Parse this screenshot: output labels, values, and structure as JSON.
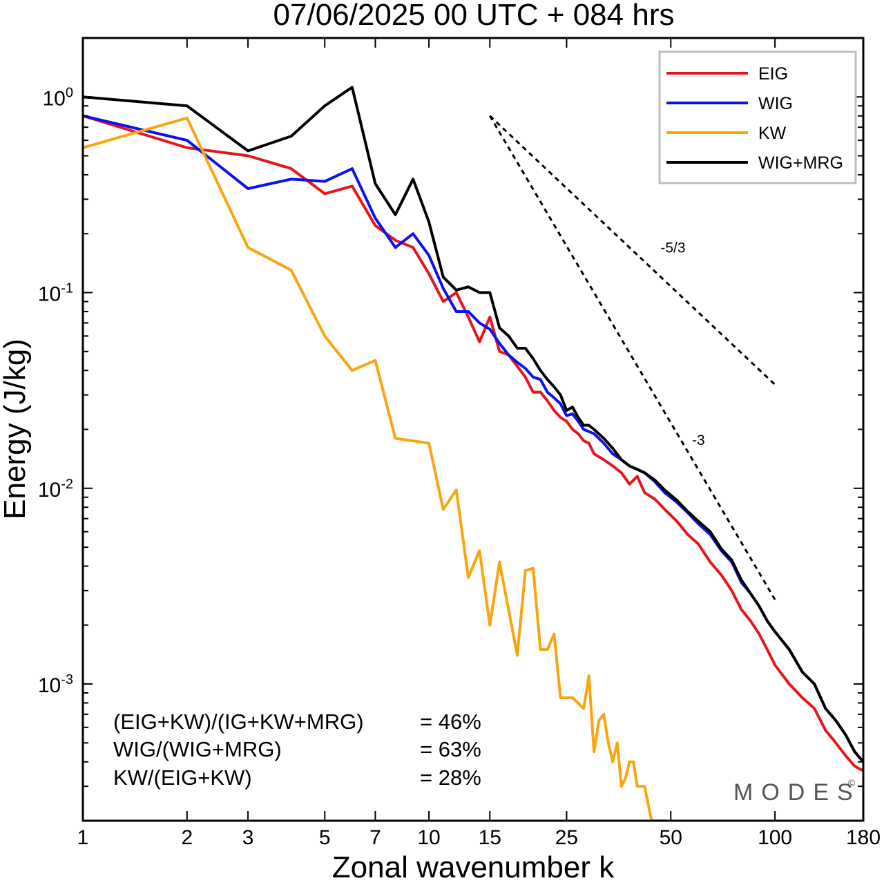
{
  "chart_data": {
    "type": "line",
    "title": "07/06/2025  00 UTC  + 084 hrs",
    "xlabel": "Zonal wavenumber k",
    "ylabel": "Energy (J/kg)",
    "xscale": "log",
    "yscale": "log",
    "xlim": [
      1,
      180
    ],
    "ylim": [
      0.0002,
      2.0
    ],
    "x_ticks": [
      1,
      2,
      3,
      5,
      7,
      10,
      15,
      25,
      50,
      100,
      180
    ],
    "x_tick_labels": [
      "1",
      "2",
      "3",
      "5",
      "7",
      "10",
      "15",
      "25",
      "50",
      "100",
      "180"
    ],
    "y_ticks": [
      {
        "value": 1.0,
        "base": "10",
        "exp": "0"
      },
      {
        "value": 0.1,
        "base": "10",
        "exp": "-1"
      },
      {
        "value": 0.01,
        "base": "10",
        "exp": "-2"
      },
      {
        "value": 0.001,
        "base": "10",
        "exp": "-3"
      }
    ],
    "grid": false,
    "legend_position": "top-right",
    "series": [
      {
        "name": "EIG",
        "color": "#e8141c",
        "points": [
          [
            1,
            0.8
          ],
          [
            2,
            0.55
          ],
          [
            3,
            0.5
          ],
          [
            4,
            0.43
          ],
          [
            5,
            0.32
          ],
          [
            6,
            0.35
          ],
          [
            7,
            0.22
          ],
          [
            8,
            0.185
          ],
          [
            9,
            0.17
          ],
          [
            10,
            0.125
          ],
          [
            11,
            0.09
          ],
          [
            12,
            0.1
          ],
          [
            13,
            0.075
          ],
          [
            14,
            0.056
          ],
          [
            15,
            0.075
          ],
          [
            16,
            0.05
          ],
          [
            17,
            0.048
          ],
          [
            18,
            0.042
          ],
          [
            19,
            0.037
          ],
          [
            20,
            0.031
          ],
          [
            21,
            0.031
          ],
          [
            22,
            0.028
          ],
          [
            23,
            0.025
          ],
          [
            24,
            0.023
          ],
          [
            25,
            0.022
          ],
          [
            26,
            0.02
          ],
          [
            27,
            0.019
          ],
          [
            28,
            0.0175
          ],
          [
            29,
            0.017
          ],
          [
            30,
            0.015
          ],
          [
            32,
            0.014
          ],
          [
            34,
            0.013
          ],
          [
            36,
            0.012
          ],
          [
            38,
            0.0105
          ],
          [
            40,
            0.0115
          ],
          [
            42,
            0.0095
          ],
          [
            45,
            0.0088
          ],
          [
            48,
            0.0078
          ],
          [
            52,
            0.0068
          ],
          [
            56,
            0.0058
          ],
          [
            60,
            0.0052
          ],
          [
            65,
            0.0042
          ],
          [
            70,
            0.0036
          ],
          [
            75,
            0.003
          ],
          [
            80,
            0.0024
          ],
          [
            85,
            0.0021
          ],
          [
            90,
            0.0018
          ],
          [
            95,
            0.0015
          ],
          [
            100,
            0.00125
          ],
          [
            110,
            0.001
          ],
          [
            120,
            0.00085
          ],
          [
            130,
            0.00075
          ],
          [
            140,
            0.00058
          ],
          [
            150,
            0.0005
          ],
          [
            160,
            0.00043
          ],
          [
            170,
            0.00038
          ],
          [
            180,
            0.00036
          ]
        ]
      },
      {
        "name": "WIG",
        "color": "#0b10f0",
        "points": [
          [
            1,
            0.8
          ],
          [
            2,
            0.6
          ],
          [
            3,
            0.34
          ],
          [
            4,
            0.38
          ],
          [
            5,
            0.37
          ],
          [
            6,
            0.43
          ],
          [
            7,
            0.24
          ],
          [
            8,
            0.17
          ],
          [
            9,
            0.2
          ],
          [
            10,
            0.155
          ],
          [
            11,
            0.105
          ],
          [
            12,
            0.08
          ],
          [
            13,
            0.08
          ],
          [
            14,
            0.07
          ],
          [
            15,
            0.065
          ],
          [
            16,
            0.055
          ],
          [
            17,
            0.048
          ],
          [
            18,
            0.044
          ],
          [
            19,
            0.041
          ],
          [
            20,
            0.037
          ],
          [
            21,
            0.036
          ],
          [
            22,
            0.031
          ],
          [
            23,
            0.029
          ],
          [
            24,
            0.027
          ],
          [
            25,
            0.0235
          ],
          [
            26,
            0.024
          ],
          [
            27,
            0.022
          ],
          [
            28,
            0.02
          ],
          [
            29,
            0.0195
          ],
          [
            30,
            0.019
          ],
          [
            32,
            0.017
          ],
          [
            34,
            0.015
          ],
          [
            36,
            0.014
          ],
          [
            38,
            0.013
          ],
          [
            40,
            0.0125
          ],
          [
            42,
            0.012
          ],
          [
            45,
            0.0108
          ],
          [
            48,
            0.0095
          ],
          [
            52,
            0.0085
          ],
          [
            56,
            0.0075
          ],
          [
            60,
            0.0066
          ],
          [
            65,
            0.0058
          ],
          [
            70,
            0.0048
          ],
          [
            75,
            0.0042
          ],
          [
            80,
            0.0033
          ],
          [
            85,
            0.0029
          ],
          [
            90,
            0.0025
          ],
          [
            95,
            0.0021
          ],
          [
            100,
            0.00185
          ],
          [
            110,
            0.0015
          ],
          [
            120,
            0.00115
          ],
          [
            130,
            0.001
          ],
          [
            140,
            0.00075
          ],
          [
            150,
            0.00065
          ],
          [
            160,
            0.00055
          ],
          [
            170,
            0.00045
          ],
          [
            180,
            0.0004
          ]
        ]
      },
      {
        "name": "KW",
        "color": "#f8a50e",
        "points": [
          [
            1,
            0.55
          ],
          [
            2,
            0.78
          ],
          [
            3,
            0.17
          ],
          [
            4,
            0.13
          ],
          [
            5,
            0.06
          ],
          [
            6,
            0.04
          ],
          [
            7,
            0.045
          ],
          [
            8,
            0.018
          ],
          [
            10,
            0.017
          ],
          [
            11,
            0.0078
          ],
          [
            12,
            0.0098
          ],
          [
            13,
            0.0035
          ],
          [
            14,
            0.0048
          ],
          [
            15,
            0.002
          ],
          [
            16,
            0.0042
          ],
          [
            18,
            0.0014
          ],
          [
            19,
            0.0038
          ],
          [
            20,
            0.0039
          ],
          [
            21,
            0.0015
          ],
          [
            22,
            0.0015
          ],
          [
            23,
            0.0018
          ],
          [
            24,
            0.00085
          ],
          [
            26,
            0.00085
          ],
          [
            28,
            0.00075
          ],
          [
            29,
            0.0011
          ],
          [
            30,
            0.00045
          ],
          [
            31,
            0.00065
          ],
          [
            32,
            0.0007
          ],
          [
            33,
            0.0005
          ],
          [
            34,
            0.0004
          ],
          [
            35,
            0.0005
          ],
          [
            36,
            0.0003
          ],
          [
            37,
            0.00033
          ],
          [
            38,
            0.0004
          ],
          [
            39,
            0.0004
          ],
          [
            40,
            0.0003
          ],
          [
            42,
            0.0003
          ],
          [
            44,
            0.0002
          ],
          [
            46,
            0.0002
          ],
          [
            48,
            0.0002
          ]
        ]
      },
      {
        "name": "WIG+MRG",
        "color": "#000000",
        "points": [
          [
            1,
            1.0
          ],
          [
            2,
            0.9
          ],
          [
            3,
            0.53
          ],
          [
            4,
            0.63
          ],
          [
            5,
            0.9
          ],
          [
            6,
            1.12
          ],
          [
            7,
            0.36
          ],
          [
            8,
            0.25
          ],
          [
            9,
            0.38
          ],
          [
            10,
            0.23
          ],
          [
            11,
            0.12
          ],
          [
            12,
            0.103
          ],
          [
            13,
            0.107
          ],
          [
            14,
            0.1
          ],
          [
            15,
            0.1
          ],
          [
            16,
            0.066
          ],
          [
            17,
            0.06
          ],
          [
            18,
            0.052
          ],
          [
            19,
            0.052
          ],
          [
            20,
            0.046
          ],
          [
            21,
            0.04
          ],
          [
            22,
            0.036
          ],
          [
            23,
            0.033
          ],
          [
            24,
            0.03
          ],
          [
            25,
            0.025
          ],
          [
            26,
            0.026
          ],
          [
            27,
            0.023
          ],
          [
            28,
            0.021
          ],
          [
            29,
            0.021
          ],
          [
            30,
            0.02
          ],
          [
            32,
            0.018
          ],
          [
            34,
            0.016
          ],
          [
            36,
            0.014
          ],
          [
            38,
            0.013
          ],
          [
            40,
            0.0125
          ],
          [
            42,
            0.012
          ],
          [
            45,
            0.011
          ],
          [
            48,
            0.0098
          ],
          [
            52,
            0.0087
          ],
          [
            56,
            0.0076
          ],
          [
            60,
            0.0068
          ],
          [
            65,
            0.006
          ],
          [
            70,
            0.0049
          ],
          [
            75,
            0.0043
          ],
          [
            80,
            0.0034
          ],
          [
            85,
            0.0029
          ],
          [
            90,
            0.0025
          ],
          [
            95,
            0.0021
          ],
          [
            100,
            0.00185
          ],
          [
            110,
            0.0015
          ],
          [
            120,
            0.00115
          ],
          [
            130,
            0.001
          ],
          [
            140,
            0.00075
          ],
          [
            150,
            0.00065
          ],
          [
            160,
            0.00055
          ],
          [
            170,
            0.00045
          ],
          [
            180,
            0.0004
          ]
        ]
      }
    ],
    "reference_slopes": [
      {
        "label": "-5/3",
        "slope": -1.6667,
        "x_start": 15,
        "x_end": 100,
        "y_start": 0.8
      },
      {
        "label": "-3",
        "slope": -3,
        "x_start": 15,
        "x_end": 100,
        "y_start": 0.8
      }
    ],
    "annotations": [
      {
        "label": "(EIG+KW)/(IG+KW+MRG)",
        "value": "= 46%"
      },
      {
        "label": "WIG/(WIG+MRG)",
        "value": "= 63%"
      },
      {
        "label": "KW/(EIG+KW)",
        "value": "= 28%"
      }
    ],
    "logo": "MODES",
    "logo_mark": "©"
  }
}
